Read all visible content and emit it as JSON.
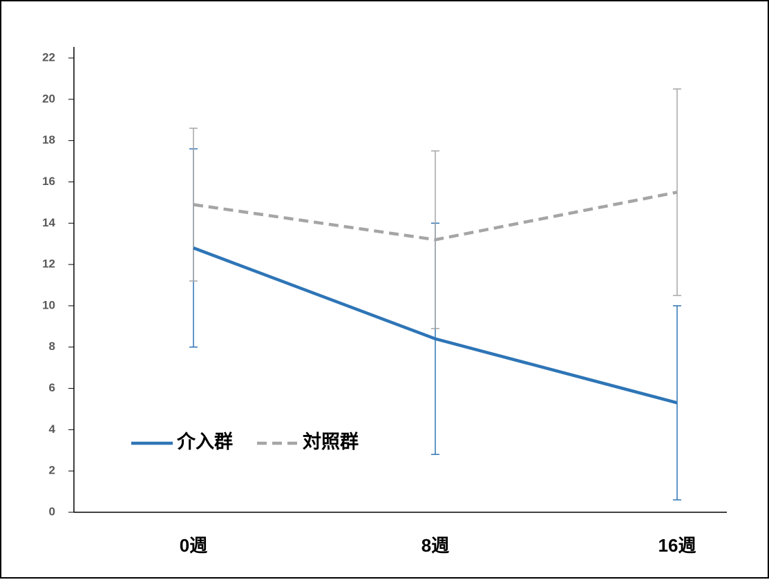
{
  "chart_data": {
    "type": "line",
    "categories": [
      "0週",
      "8週",
      "16週"
    ],
    "series": [
      {
        "name": "介入群",
        "color": "#2e75b6",
        "dash": false,
        "values": [
          12.8,
          8.4,
          5.3
        ],
        "errors": [
          4.8,
          5.6,
          4.7
        ]
      },
      {
        "name": "対照群",
        "color": "#a5a5a5",
        "dash": true,
        "values": [
          14.9,
          13.2,
          15.5
        ],
        "errors": [
          3.7,
          4.3,
          5.0
        ]
      }
    ],
    "ylim": [
      0,
      22
    ],
    "yticks": [
      0,
      2,
      4,
      6,
      8,
      10,
      12,
      14,
      16,
      18,
      20,
      22
    ],
    "grid": false,
    "legend": "lower left"
  }
}
